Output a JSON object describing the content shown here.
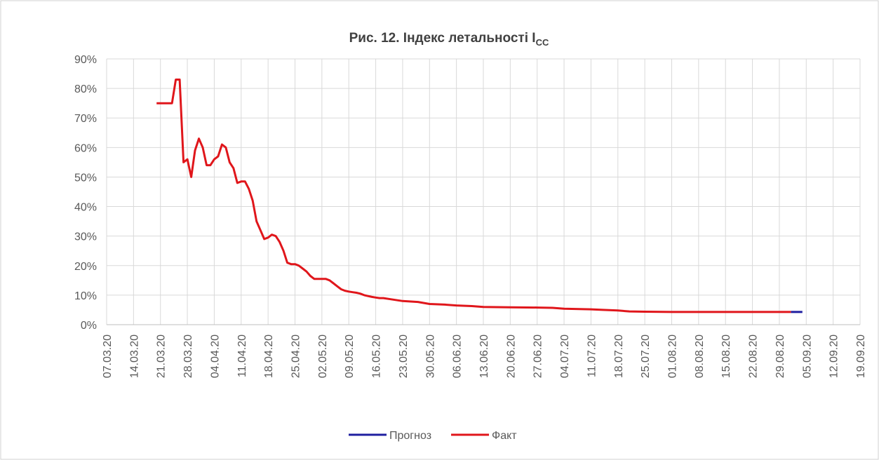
{
  "chart_data": {
    "type": "line",
    "title": "Рис. 12. Індекс летальності I",
    "title_subscript": "CC",
    "xlim": [
      "07.03.20",
      "19.09.20"
    ],
    "xticks": [
      "07.03.20",
      "14.03.20",
      "21.03.20",
      "28.03.20",
      "04.04.20",
      "11.04.20",
      "18.04.20",
      "25.04.20",
      "02.05.20",
      "09.05.20",
      "16.05.20",
      "23.05.20",
      "30.05.20",
      "06.06.20",
      "13.06.20",
      "20.06.20",
      "27.06.20",
      "04.07.20",
      "11.07.20",
      "18.07.20",
      "25.07.20",
      "01.08.20",
      "08.08.20",
      "15.08.20",
      "22.08.20",
      "29.08.20",
      "05.09.20",
      "12.09.20",
      "19.09.20"
    ],
    "ylim": [
      0,
      90
    ],
    "yticks": [
      {
        "value": 0,
        "label": "0%"
      },
      {
        "value": 10,
        "label": "10%"
      },
      {
        "value": 20,
        "label": "20%"
      },
      {
        "value": 30,
        "label": "30%"
      },
      {
        "value": 40,
        "label": "40%"
      },
      {
        "value": 50,
        "label": "50%"
      },
      {
        "value": 60,
        "label": "60%"
      },
      {
        "value": 70,
        "label": "70%"
      },
      {
        "value": 80,
        "label": "80%"
      },
      {
        "value": 90,
        "label": "90%"
      }
    ],
    "grid": true,
    "legend": "bottom",
    "series": [
      {
        "name": "Прогноз",
        "color": "#1f1fa0",
        "x": [
          "01.09.20",
          "04.09.20"
        ],
        "values": [
          4.3,
          4.3
        ]
      },
      {
        "name": "Факт",
        "color": "#e0161b",
        "x": [
          "20.03.20",
          "21.03.20",
          "22.03.20",
          "23.03.20",
          "24.03.20",
          "25.03.20",
          "26.03.20",
          "27.03.20",
          "28.03.20",
          "29.03.20",
          "30.03.20",
          "31.03.20",
          "01.04.20",
          "02.04.20",
          "03.04.20",
          "04.04.20",
          "05.04.20",
          "06.04.20",
          "07.04.20",
          "08.04.20",
          "09.04.20",
          "10.04.20",
          "11.04.20",
          "12.04.20",
          "13.04.20",
          "14.04.20",
          "15.04.20",
          "16.04.20",
          "17.04.20",
          "18.04.20",
          "19.04.20",
          "20.04.20",
          "21.04.20",
          "22.04.20",
          "23.04.20",
          "24.04.20",
          "25.04.20",
          "26.04.20",
          "27.04.20",
          "28.04.20",
          "29.04.20",
          "30.04.20",
          "01.05.20",
          "02.05.20",
          "03.05.20",
          "04.05.20",
          "05.05.20",
          "06.05.20",
          "07.05.20",
          "08.05.20",
          "09.05.20",
          "10.05.20",
          "11.05.20",
          "12.05.20",
          "13.05.20",
          "14.05.20",
          "15.05.20",
          "16.05.20",
          "17.05.20",
          "18.05.20",
          "20.05.20",
          "23.05.20",
          "27.05.20",
          "30.05.20",
          "03.06.20",
          "06.06.20",
          "10.06.20",
          "13.06.20",
          "20.06.20",
          "27.06.20",
          "01.07.20",
          "04.07.20",
          "11.07.20",
          "14.07.20",
          "18.07.20",
          "21.07.20",
          "25.07.20",
          "01.08.20",
          "08.08.20",
          "15.08.20",
          "22.08.20",
          "29.08.20",
          "01.09.20"
        ],
        "values": [
          75,
          75,
          75,
          75,
          75,
          83,
          83,
          55,
          56,
          50,
          59,
          63,
          60,
          54,
          54,
          56,
          57,
          61,
          60,
          55,
          53,
          48,
          48.5,
          48.5,
          46,
          42,
          35,
          32,
          29,
          29.5,
          30.5,
          30,
          28,
          25,
          21,
          20.5,
          20.5,
          20,
          19,
          18,
          16.5,
          15.5,
          15.5,
          15.5,
          15.5,
          15,
          14,
          13,
          12,
          11.5,
          11.2,
          11,
          10.8,
          10.5,
          10,
          9.7,
          9.4,
          9.2,
          9,
          9,
          8.6,
          8,
          7.7,
          7,
          6.8,
          6.5,
          6.3,
          6,
          5.9,
          5.8,
          5.7,
          5.4,
          5.2,
          5,
          4.8,
          4.5,
          4.4,
          4.3,
          4.3,
          4.3,
          4.3,
          4.3,
          4.3
        ]
      }
    ]
  }
}
